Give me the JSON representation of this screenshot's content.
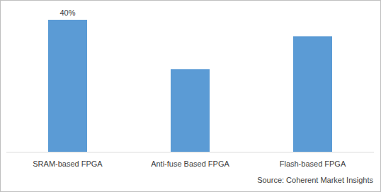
{
  "chart_data": {
    "type": "bar",
    "categories": [
      "SRAM-based FPGA",
      "Anti-fuse Based FPGA",
      "Flash-based FPGA"
    ],
    "values": [
      40,
      25,
      35
    ],
    "value_labels": [
      "40%",
      null,
      null
    ],
    "data_labels": true,
    "color": "#5b9bd5",
    "tick_labels": "x",
    "grid": false,
    "source": "Source: Coherent Market Insights"
  }
}
